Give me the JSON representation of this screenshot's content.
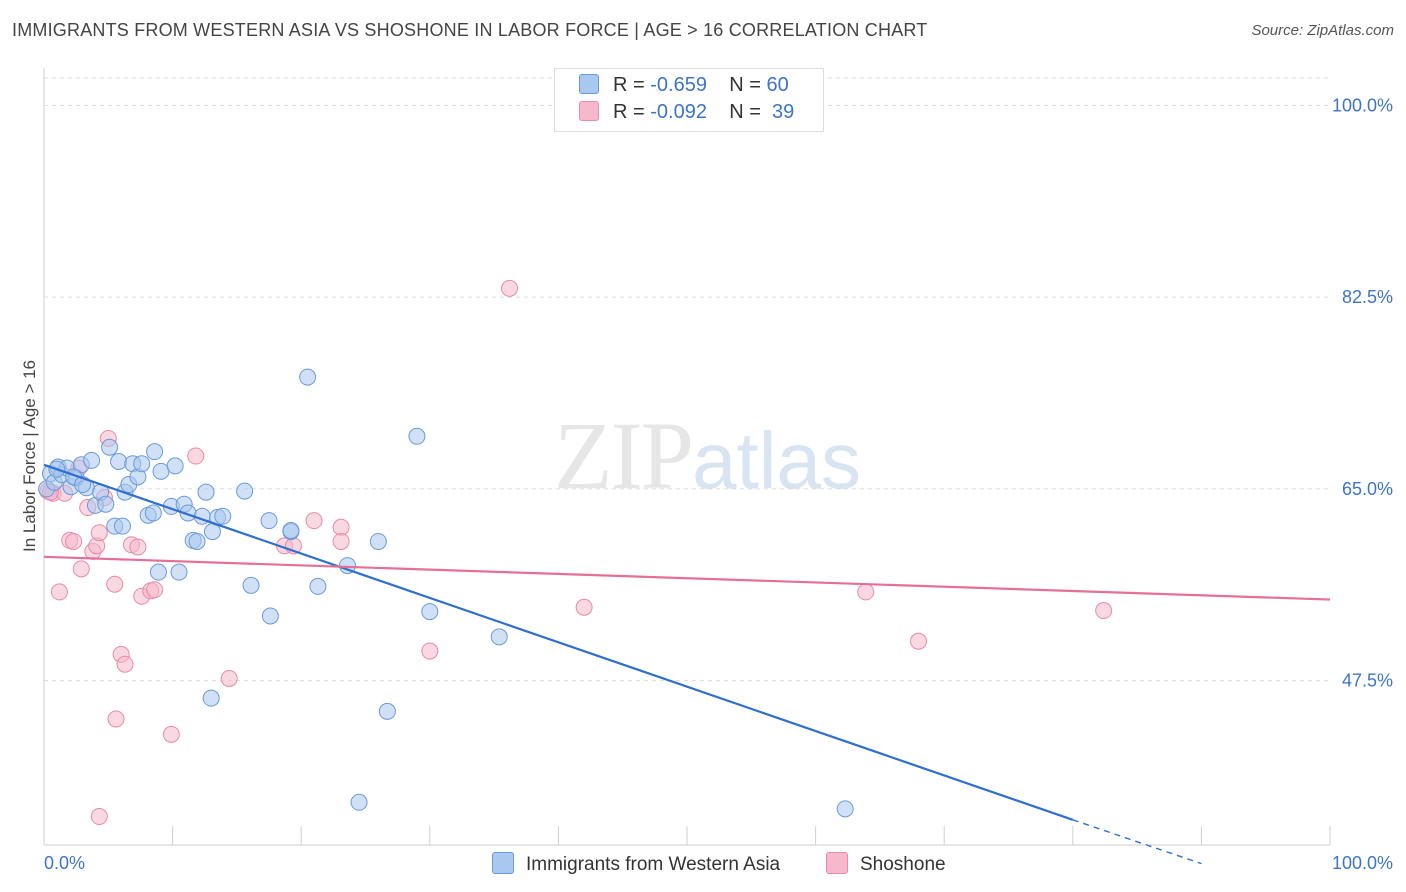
{
  "header": {
    "title": "IMMIGRANTS FROM WESTERN ASIA VS SHOSHONE IN LABOR FORCE | AGE > 16 CORRELATION CHART",
    "source": "Source: ZipAtlas.com"
  },
  "watermark": {
    "zip": "ZIP",
    "atlas": "atlas"
  },
  "stats": {
    "rows": [
      {
        "r_label": "R = ",
        "r_value": "-0.659",
        "n_label": "N = ",
        "n_value": "60",
        "color": "#a9c8f0"
      },
      {
        "r_label": "R = ",
        "r_value": "-0.092",
        "n_label": "N = ",
        "n_value": "39",
        "color": "#f6b8cb"
      }
    ]
  },
  "legend": {
    "items": [
      {
        "label": "Immigrants from Western Asia",
        "color": "#a9c8f0"
      },
      {
        "label": "Shoshone",
        "color": "#f6b8cb"
      }
    ]
  },
  "chart_data": {
    "type": "scatter",
    "ylabel": "In Labor Force | Age > 16",
    "xlim": [
      0,
      100
    ],
    "ylim": [
      32.5,
      102.5
    ],
    "x_tick_labels": [
      "0.0%",
      "100.0%"
    ],
    "y_ticks": [
      {
        "value": 100.0,
        "label": "100.0%"
      },
      {
        "value": 82.5,
        "label": "82.5%"
      },
      {
        "value": 65.0,
        "label": "65.0%"
      },
      {
        "value": 47.5,
        "label": "47.5%"
      }
    ],
    "grid": true,
    "colors": {
      "blue_fill": "#a9c8f0",
      "blue_stroke": "#6b9ad8",
      "blue_line": "#2f6fd0",
      "pink_fill": "#f6b8cb",
      "pink_stroke": "#e98aa8",
      "pink_line": "#e56f96",
      "tick_label": "#3d74c8"
    },
    "series": [
      {
        "name": "Immigrants from Western Asia",
        "points": [
          [
            0.2,
            65.0
          ],
          [
            0.5,
            66.4
          ],
          [
            0.8,
            65.6
          ],
          [
            1.1,
            67.0
          ],
          [
            1.4,
            66.3
          ],
          [
            1.8,
            66.9
          ],
          [
            2.1,
            65.2
          ],
          [
            2.5,
            66.0
          ],
          [
            2.9,
            67.2
          ],
          [
            3.3,
            65.1
          ],
          [
            3.7,
            67.6
          ],
          [
            4.0,
            63.5
          ],
          [
            4.4,
            64.7
          ],
          [
            4.8,
            63.6
          ],
          [
            5.1,
            68.8
          ],
          [
            5.5,
            61.6
          ],
          [
            5.8,
            67.5
          ],
          [
            6.1,
            61.6
          ],
          [
            6.3,
            64.7
          ],
          [
            6.6,
            65.4
          ],
          [
            6.9,
            67.3
          ],
          [
            7.3,
            66.1
          ],
          [
            7.6,
            67.3
          ],
          [
            8.1,
            62.6
          ],
          [
            8.5,
            62.8
          ],
          [
            8.6,
            68.4
          ],
          [
            8.9,
            57.4
          ],
          [
            9.1,
            66.6
          ],
          [
            9.9,
            63.4
          ],
          [
            10.2,
            67.1
          ],
          [
            10.5,
            57.4
          ],
          [
            10.9,
            63.6
          ],
          [
            11.2,
            62.8
          ],
          [
            11.6,
            60.3
          ],
          [
            11.9,
            60.2
          ],
          [
            12.3,
            62.5
          ],
          [
            12.6,
            64.7
          ],
          [
            13.1,
            61.1
          ],
          [
            13.5,
            62.4
          ],
          [
            13.9,
            62.5
          ],
          [
            15.6,
            64.8
          ],
          [
            16.1,
            56.2
          ],
          [
            17.5,
            62.1
          ],
          [
            17.6,
            53.4
          ],
          [
            19.2,
            61.1
          ],
          [
            19.2,
            61.2
          ],
          [
            21.3,
            56.1
          ],
          [
            20.5,
            75.2
          ],
          [
            23.6,
            58.0
          ],
          [
            24.5,
            36.4
          ],
          [
            26.0,
            60.2
          ],
          [
            26.7,
            44.7
          ],
          [
            29.0,
            69.8
          ],
          [
            30.0,
            53.8
          ],
          [
            35.4,
            51.5
          ],
          [
            13.0,
            45.9
          ],
          [
            1.0,
            66.8
          ],
          [
            2.3,
            66.1
          ],
          [
            3.0,
            65.4
          ],
          [
            62.3,
            35.8
          ]
        ]
      },
      {
        "name": "Shoshone",
        "points": [
          [
            0.3,
            64.8
          ],
          [
            0.7,
            64.6
          ],
          [
            1.2,
            55.6
          ],
          [
            1.6,
            64.6
          ],
          [
            2.0,
            60.3
          ],
          [
            2.3,
            60.2
          ],
          [
            2.7,
            66.9
          ],
          [
            2.9,
            57.7
          ],
          [
            3.4,
            63.3
          ],
          [
            3.8,
            59.3
          ],
          [
            4.1,
            59.8
          ],
          [
            4.3,
            61.0
          ],
          [
            4.7,
            64.2
          ],
          [
            5.0,
            69.6
          ],
          [
            5.5,
            56.3
          ],
          [
            5.6,
            44.0
          ],
          [
            6.0,
            49.9
          ],
          [
            6.3,
            49.0
          ],
          [
            6.8,
            59.9
          ],
          [
            7.3,
            59.7
          ],
          [
            7.6,
            55.2
          ],
          [
            8.3,
            55.7
          ],
          [
            8.6,
            55.8
          ],
          [
            9.9,
            42.6
          ],
          [
            11.8,
            68.0
          ],
          [
            14.4,
            47.7
          ],
          [
            18.7,
            59.8
          ],
          [
            19.4,
            59.8
          ],
          [
            21.0,
            62.1
          ],
          [
            23.1,
            61.5
          ],
          [
            23.1,
            60.2
          ],
          [
            30.0,
            50.2
          ],
          [
            36.2,
            83.3
          ],
          [
            42.0,
            54.2
          ],
          [
            63.9,
            55.6
          ],
          [
            68.0,
            51.1
          ],
          [
            82.4,
            53.9
          ],
          [
            4.3,
            35.1
          ],
          [
            0.5,
            64.7
          ]
        ]
      }
    ],
    "trendlines": [
      {
        "series": "Immigrants from Western Asia",
        "x0": 0,
        "y0": 67.2,
        "x1": 80,
        "y1": 34.8,
        "dashed_to_x": 90,
        "dashed_to_y": 30.8
      },
      {
        "series": "Shoshone",
        "x0": 0,
        "y0": 58.8,
        "x1": 100,
        "y1": 54.9
      }
    ]
  }
}
